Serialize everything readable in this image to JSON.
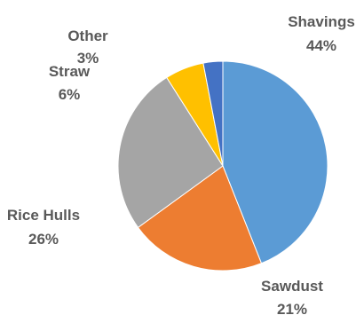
{
  "chart_data": {
    "type": "pie",
    "title": "",
    "start_angle_deg": 0,
    "direction": "clockwise",
    "slices": [
      {
        "label": "Shavings",
        "value": 44,
        "value_label": "44%",
        "color": "#5b9bd5"
      },
      {
        "label": "Sawdust",
        "value": 21,
        "value_label": "21%",
        "color": "#ed7d31"
      },
      {
        "label": "Rice Hulls",
        "value": 26,
        "value_label": "26%",
        "color": "#a5a5a5"
      },
      {
        "label": "Straw",
        "value": 6,
        "value_label": "6%",
        "color": "#ffc000"
      },
      {
        "label": "Other",
        "value": 3,
        "value_label": "3%",
        "color": "#4472c4"
      }
    ],
    "legend": "none",
    "data_labels": "outside"
  }
}
